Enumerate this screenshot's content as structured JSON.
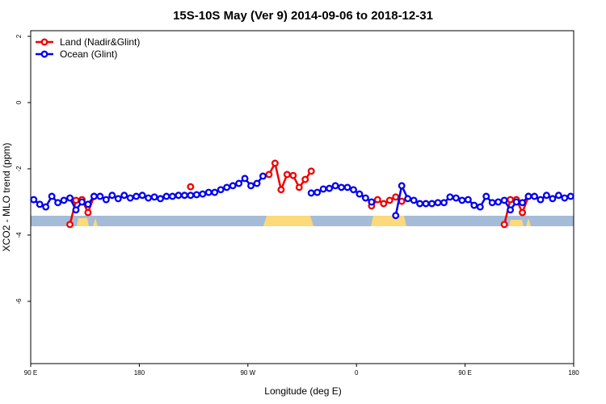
{
  "chart_data": {
    "type": "line",
    "title": "15S-10S May (Ver 9)   2014-09-06 to 2018-12-31",
    "x_label": "Longitude (deg E)",
    "y_label": "XCO2 - MLO trend (ppm)",
    "xlim": [
      90,
      540
    ],
    "ylim": [
      -7.88,
      2.17
    ],
    "xticks": [
      {
        "value": 90,
        "label": "90 E"
      },
      {
        "value": 180,
        "label": "180"
      },
      {
        "value": 270,
        "label": "90 W"
      },
      {
        "value": 360,
        "label": "0"
      },
      {
        "value": 450,
        "label": "90 E"
      },
      {
        "value": 540,
        "label": "180"
      }
    ],
    "yticks": [
      2,
      0,
      -2,
      -4,
      -6
    ],
    "legend": "top-left",
    "x": [
      92.5,
      97.5,
      102.5,
      107.5,
      112.5,
      117.5,
      122.5,
      127.5,
      132.5,
      137.5,
      142.5,
      147.5,
      152.5,
      157.5,
      162.5,
      167.5,
      172.5,
      177.5,
      182.5,
      187.5,
      192.5,
      197.5,
      202.5,
      207.5,
      212.5,
      217.5,
      222.5,
      227.5,
      232.5,
      237.5,
      242.5,
      247.5,
      252.5,
      257.5,
      262.5,
      267.5,
      272.5,
      277.5,
      282.5,
      287.5,
      292.5,
      297.5,
      302.5,
      307.5,
      312.5,
      317.5,
      322.5,
      327.5,
      332.5,
      337.5,
      342.5,
      347.5,
      352.5,
      357.5,
      362.5,
      367.5,
      372.5,
      377.5,
      382.5,
      387.5,
      392.5,
      397.5,
      402.5,
      407.5,
      412.5,
      417.5,
      422.5,
      427.5,
      432.5,
      437.5,
      442.5,
      447.5,
      452.5,
      457.5,
      462.5,
      467.5,
      472.5,
      477.5,
      482.5,
      487.5,
      492.5,
      497.5,
      502.5,
      507.5,
      512.5,
      517.5,
      522.5,
      527.5,
      532.5,
      537.5
    ],
    "series": [
      {
        "name": "Land (Nadir&Glint)",
        "color": "#ee0000",
        "values": [
          null,
          null,
          null,
          null,
          null,
          null,
          -3.68,
          -2.95,
          -2.93,
          -3.32,
          -2.83,
          null,
          null,
          null,
          null,
          null,
          null,
          null,
          null,
          null,
          null,
          null,
          null,
          null,
          null,
          null,
          -2.54,
          null,
          null,
          null,
          null,
          null,
          null,
          null,
          null,
          null,
          null,
          null,
          null,
          -2.17,
          -1.83,
          -2.63,
          -2.17,
          -2.2,
          -2.56,
          -2.32,
          -2.07,
          null,
          null,
          null,
          null,
          null,
          null,
          null,
          null,
          null,
          -3.12,
          -2.93,
          -3.05,
          -2.95,
          -2.85,
          -2.98,
          null,
          null,
          null,
          null,
          null,
          null,
          null,
          null,
          null,
          null,
          null,
          null,
          null,
          null,
          null,
          null,
          -3.68,
          -2.93,
          -2.93,
          -3.32,
          -2.83,
          null,
          null,
          null,
          null,
          null,
          null,
          null
        ]
      },
      {
        "name": "Ocean (Glint)",
        "color": "#0000ee",
        "values": [
          -2.93,
          -3.07,
          -3.15,
          -2.83,
          -3.02,
          -2.95,
          -2.88,
          -3.24,
          -3.0,
          -3.07,
          -2.83,
          -2.83,
          -2.93,
          -2.8,
          -2.9,
          -2.8,
          -2.88,
          -2.83,
          -2.8,
          -2.88,
          -2.85,
          -2.9,
          -2.83,
          -2.83,
          -2.8,
          -2.8,
          -2.8,
          -2.78,
          -2.76,
          -2.71,
          -2.71,
          -2.63,
          -2.56,
          -2.51,
          -2.44,
          -2.29,
          -2.51,
          -2.44,
          -2.22,
          null,
          null,
          null,
          null,
          null,
          null,
          null,
          -2.73,
          -2.71,
          -2.61,
          -2.59,
          -2.51,
          -2.56,
          -2.56,
          -2.63,
          -2.76,
          -2.88,
          -3.0,
          null,
          null,
          null,
          -3.41,
          -2.51,
          -2.9,
          -2.95,
          -3.05,
          -3.05,
          -3.05,
          -3.02,
          -3.02,
          -2.85,
          -2.88,
          -2.95,
          -2.93,
          -3.1,
          -3.15,
          -2.83,
          -3.02,
          -3.0,
          -2.95,
          -3.24,
          -3.0,
          -3.02,
          -2.83,
          -2.83,
          -2.93,
          -2.8,
          -2.9,
          -2.8,
          -2.88,
          -2.83
        ]
      }
    ]
  }
}
